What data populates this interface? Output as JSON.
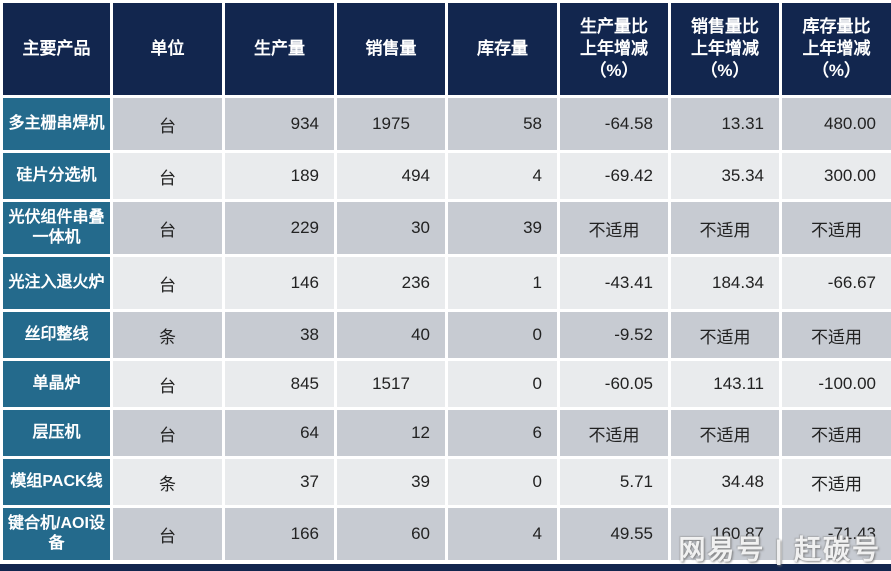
{
  "table": {
    "columns": [
      {
        "label": "主要产品"
      },
      {
        "label": "单位"
      },
      {
        "label": "生产量"
      },
      {
        "label": "销售量"
      },
      {
        "label": "库存量"
      },
      {
        "label": "生产量比\n上年增减\n（%）"
      },
      {
        "label": "销售量比\n上年增减\n（%）"
      },
      {
        "label": "库存量比\n上年增减\n（%）"
      }
    ],
    "not_applicable_label": "不适用",
    "rows": [
      {
        "product": "多主栅串焊机",
        "tall": true,
        "cells": [
          {
            "t": "台",
            "a": "c"
          },
          {
            "t": "934",
            "a": "r"
          },
          {
            "t": "1975",
            "a": "c"
          },
          {
            "t": "58",
            "a": "r"
          },
          {
            "t": "-64.58",
            "a": "r"
          },
          {
            "t": "13.31",
            "a": "r"
          },
          {
            "t": "480.00",
            "a": "r"
          }
        ]
      },
      {
        "product": "硅片分选机",
        "tall": false,
        "cells": [
          {
            "t": "台",
            "a": "c"
          },
          {
            "t": "189",
            "a": "r"
          },
          {
            "t": "494",
            "a": "r"
          },
          {
            "t": "4",
            "a": "r"
          },
          {
            "t": "-69.42",
            "a": "r"
          },
          {
            "t": "35.34",
            "a": "r"
          },
          {
            "t": "300.00",
            "a": "r"
          }
        ]
      },
      {
        "product": "光伏组件串叠一体机",
        "tall": true,
        "cells": [
          {
            "t": "台",
            "a": "c"
          },
          {
            "t": "229",
            "a": "r"
          },
          {
            "t": "30",
            "a": "r"
          },
          {
            "t": "39",
            "a": "r"
          },
          {
            "t": "不适用",
            "a": "c"
          },
          {
            "t": "不适用",
            "a": "c"
          },
          {
            "t": "不适用",
            "a": "c"
          }
        ]
      },
      {
        "product": "光注入退火炉",
        "tall": true,
        "cells": [
          {
            "t": "台",
            "a": "c"
          },
          {
            "t": "146",
            "a": "r"
          },
          {
            "t": "236",
            "a": "r"
          },
          {
            "t": "1",
            "a": "r"
          },
          {
            "t": "-43.41",
            "a": "r"
          },
          {
            "t": "184.34",
            "a": "r"
          },
          {
            "t": "-66.67",
            "a": "r"
          }
        ]
      },
      {
        "product": "丝印整线",
        "tall": false,
        "cells": [
          {
            "t": "条",
            "a": "c"
          },
          {
            "t": "38",
            "a": "r"
          },
          {
            "t": "40",
            "a": "r"
          },
          {
            "t": "0",
            "a": "r"
          },
          {
            "t": "-9.52",
            "a": "r"
          },
          {
            "t": "不适用",
            "a": "c"
          },
          {
            "t": "不适用",
            "a": "c"
          }
        ]
      },
      {
        "product": "单晶炉",
        "tall": false,
        "cells": [
          {
            "t": "台",
            "a": "c"
          },
          {
            "t": "845",
            "a": "r"
          },
          {
            "t": "1517",
            "a": "c"
          },
          {
            "t": "0",
            "a": "r"
          },
          {
            "t": "-60.05",
            "a": "r"
          },
          {
            "t": "143.11",
            "a": "r"
          },
          {
            "t": "-100.00",
            "a": "r"
          }
        ]
      },
      {
        "product": "层压机",
        "tall": false,
        "cells": [
          {
            "t": "台",
            "a": "c"
          },
          {
            "t": "64",
            "a": "r"
          },
          {
            "t": "12",
            "a": "r"
          },
          {
            "t": "6",
            "a": "r"
          },
          {
            "t": "不适用",
            "a": "c"
          },
          {
            "t": "不适用",
            "a": "c"
          },
          {
            "t": "不适用",
            "a": "c"
          }
        ]
      },
      {
        "product": "模组PACK线",
        "tall": false,
        "cells": [
          {
            "t": "条",
            "a": "c"
          },
          {
            "t": "37",
            "a": "r"
          },
          {
            "t": "39",
            "a": "r"
          },
          {
            "t": "0",
            "a": "r"
          },
          {
            "t": "5.71",
            "a": "r"
          },
          {
            "t": "34.48",
            "a": "r"
          },
          {
            "t": "不适用",
            "a": "c"
          }
        ]
      },
      {
        "product": "键合机/AOI设备",
        "tall": true,
        "cells": [
          {
            "t": "台",
            "a": "c"
          },
          {
            "t": "166",
            "a": "r"
          },
          {
            "t": "60",
            "a": "r"
          },
          {
            "t": "4",
            "a": "r"
          },
          {
            "t": "49.55",
            "a": "r"
          },
          {
            "t": "160.87",
            "a": "r"
          },
          {
            "t": "-71.43",
            "a": "r"
          }
        ]
      }
    ]
  },
  "colors": {
    "header_bg": "#12264e",
    "product_col_bg": "#246a8c",
    "row_odd_bg": "#c7cbd2",
    "row_even_bg": "#e9ebed",
    "grid_line": "#ffffff",
    "data_text": "#222222"
  },
  "watermark": {
    "text": "网易号 | 赶碳号"
  }
}
